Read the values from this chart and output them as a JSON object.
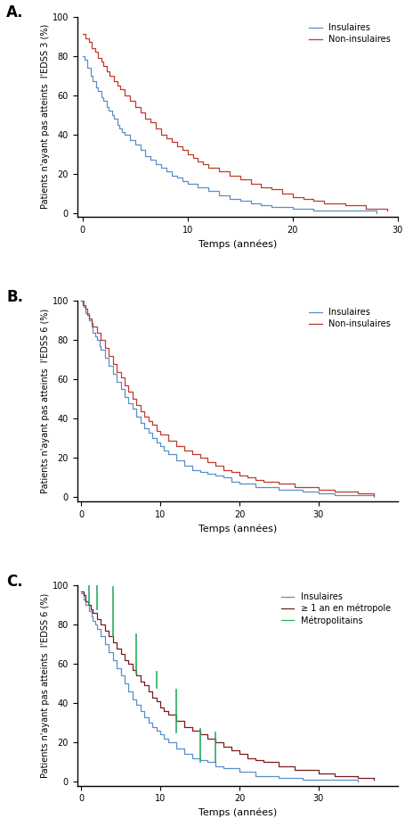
{
  "panel_A": {
    "title_label": "A.",
    "ylabel": "Patients n'ayant pas atteints  l'EDSS 3 (%)",
    "xlabel": "Temps (années)",
    "xlim": [
      -0.5,
      30
    ],
    "ylim": [
      -2,
      100
    ],
    "xticks": [
      0,
      10,
      20,
      30
    ],
    "yticks": [
      0,
      20,
      40,
      60,
      80,
      100
    ],
    "insulaires": {
      "color": "#5b8fc9",
      "label": "Insulaires",
      "time": [
        0,
        0.2,
        0.5,
        0.8,
        1.0,
        1.3,
        1.5,
        1.8,
        2.0,
        2.3,
        2.5,
        2.8,
        3.0,
        3.3,
        3.5,
        3.8,
        4.0,
        4.5,
        5.0,
        5.5,
        6.0,
        6.5,
        7.0,
        7.5,
        8.0,
        8.5,
        9.0,
        9.5,
        10.0,
        11.0,
        12.0,
        13.0,
        14.0,
        15.0,
        16.0,
        17.0,
        18.0,
        20.0,
        22.0,
        25.0,
        28.0
      ],
      "surv": [
        80,
        78,
        74,
        70,
        67,
        64,
        62,
        59,
        57,
        54,
        52,
        50,
        48,
        45,
        43,
        41,
        40,
        37,
        35,
        32,
        29,
        27,
        25,
        23,
        21,
        19,
        18,
        16,
        15,
        13,
        11,
        9,
        7,
        6,
        5,
        4,
        3,
        2,
        1,
        1,
        0
      ]
    },
    "non_insulaires": {
      "color": "#c0392b",
      "label": "Non-insulaires",
      "time": [
        0,
        0.3,
        0.6,
        0.9,
        1.2,
        1.5,
        1.8,
        2.0,
        2.3,
        2.6,
        3.0,
        3.3,
        3.6,
        4.0,
        4.5,
        5.0,
        5.5,
        6.0,
        6.5,
        7.0,
        7.5,
        8.0,
        8.5,
        9.0,
        9.5,
        10.0,
        10.5,
        11.0,
        11.5,
        12.0,
        13.0,
        14.0,
        15.0,
        16.0,
        17.0,
        18.0,
        19.0,
        20.0,
        21.0,
        22.0,
        23.0,
        25.0,
        27.0,
        29.0
      ],
      "surv": [
        91,
        89,
        87,
        84,
        82,
        79,
        77,
        75,
        72,
        70,
        67,
        65,
        63,
        60,
        57,
        54,
        51,
        48,
        46,
        43,
        40,
        38,
        36,
        34,
        32,
        30,
        28,
        26,
        25,
        23,
        21,
        19,
        17,
        15,
        13,
        12,
        10,
        8,
        7,
        6,
        5,
        4,
        2,
        1
      ]
    }
  },
  "panel_B": {
    "title_label": "B.",
    "ylabel": "Patients n'ayant pas atteints  l'EDSS 6 (%)",
    "xlabel": "Temps (années)",
    "xlim": [
      -0.5,
      40
    ],
    "ylim": [
      -2,
      100
    ],
    "xticks": [
      0,
      10,
      20,
      30
    ],
    "yticks": [
      0,
      20,
      40,
      60,
      80,
      100
    ],
    "insulaires": {
      "color": "#5b8fc9",
      "label": "Insulaires",
      "time": [
        0,
        0.3,
        0.6,
        1.0,
        1.3,
        1.5,
        1.8,
        2.0,
        2.3,
        2.5,
        3.0,
        3.5,
        4.0,
        4.5,
        5.0,
        5.5,
        6.0,
        6.5,
        7.0,
        7.5,
        8.0,
        8.5,
        9.0,
        9.5,
        10.0,
        10.5,
        11.0,
        12.0,
        13.0,
        14.0,
        15.0,
        16.0,
        17.0,
        18.0,
        19.0,
        20.0,
        22.0,
        25.0,
        28.0,
        30.0,
        32.0,
        35.0,
        37.0
      ],
      "surv": [
        100,
        97,
        94,
        90,
        87,
        84,
        82,
        80,
        77,
        75,
        71,
        67,
        63,
        59,
        55,
        51,
        48,
        45,
        41,
        38,
        35,
        33,
        30,
        28,
        26,
        24,
        22,
        19,
        16,
        14,
        13,
        12,
        11,
        10,
        8,
        7,
        5,
        4,
        3,
        2,
        1,
        1,
        0
      ]
    },
    "non_insulaires": {
      "color": "#c0392b",
      "label": "Non-insulaires",
      "time": [
        0,
        0.2,
        0.5,
        0.8,
        1.0,
        1.3,
        1.5,
        2.0,
        2.5,
        3.0,
        3.5,
        4.0,
        4.5,
        5.0,
        5.5,
        6.0,
        6.5,
        7.0,
        7.5,
        8.0,
        8.5,
        9.0,
        9.5,
        10.0,
        11.0,
        12.0,
        13.0,
        14.0,
        15.0,
        16.0,
        17.0,
        18.0,
        19.0,
        20.0,
        21.0,
        22.0,
        23.0,
        25.0,
        27.0,
        30.0,
        32.0,
        35.0,
        37.0
      ],
      "surv": [
        100,
        98,
        96,
        93,
        91,
        89,
        87,
        84,
        80,
        76,
        72,
        68,
        64,
        61,
        57,
        54,
        50,
        47,
        44,
        41,
        39,
        37,
        34,
        32,
        29,
        26,
        24,
        22,
        20,
        18,
        16,
        14,
        13,
        11,
        10,
        9,
        8,
        7,
        5,
        4,
        3,
        2,
        1
      ]
    }
  },
  "panel_C": {
    "title_label": "C.",
    "ylabel": "Patients n'ayant pas atteints  l'EDSS 6 (%)",
    "xlabel": "Temps (années)",
    "xlim": [
      -0.5,
      40
    ],
    "ylim": [
      -2,
      100
    ],
    "xticks": [
      0,
      10,
      20,
      30
    ],
    "yticks": [
      0,
      20,
      40,
      60,
      80,
      100
    ],
    "insulaires": {
      "color": "#5b8fc9",
      "label": "Insulaires",
      "time": [
        0,
        0.3,
        0.6,
        1.0,
        1.3,
        1.5,
        1.8,
        2.0,
        2.5,
        3.0,
        3.5,
        4.0,
        4.5,
        5.0,
        5.5,
        6.0,
        6.5,
        7.0,
        7.5,
        8.0,
        8.5,
        9.0,
        9.5,
        10.0,
        10.5,
        11.0,
        12.0,
        13.0,
        14.0,
        15.0,
        16.0,
        17.0,
        18.0,
        20.0,
        22.0,
        25.0,
        28.0,
        30.0,
        32.0,
        35.0
      ],
      "surv": [
        96,
        93,
        90,
        87,
        84,
        82,
        80,
        78,
        74,
        70,
        66,
        62,
        58,
        54,
        50,
        46,
        42,
        39,
        36,
        33,
        30,
        28,
        26,
        24,
        22,
        20,
        17,
        14,
        12,
        11,
        10,
        8,
        7,
        5,
        3,
        2,
        1,
        1,
        1,
        0
      ]
    },
    "metropole": {
      "color": "#7b1a1a",
      "label": "≥ 1 an en métropole",
      "time": [
        0,
        0.3,
        0.6,
        0.9,
        1.2,
        1.5,
        2.0,
        2.5,
        3.0,
        3.5,
        4.0,
        4.5,
        5.0,
        5.5,
        6.0,
        6.5,
        7.0,
        7.5,
        8.0,
        8.5,
        9.0,
        9.5,
        10.0,
        10.5,
        11.0,
        12.0,
        13.0,
        14.0,
        15.0,
        16.0,
        17.0,
        18.0,
        19.0,
        20.0,
        21.0,
        22.0,
        23.0,
        25.0,
        27.0,
        30.0,
        32.0,
        35.0,
        37.0
      ],
      "surv": [
        97,
        95,
        92,
        90,
        88,
        86,
        83,
        80,
        77,
        74,
        71,
        68,
        65,
        62,
        60,
        57,
        54,
        51,
        49,
        46,
        43,
        41,
        38,
        36,
        34,
        31,
        28,
        26,
        24,
        22,
        20,
        18,
        16,
        14,
        12,
        11,
        10,
        8,
        6,
        4,
        3,
        2,
        1
      ]
    },
    "metropolitains": {
      "color": "#27ae60",
      "label": "Métropolitains",
      "ci_segments": [
        {
          "x": 1.0,
          "y_low": 90,
          "y_high": 100
        },
        {
          "x": 2.0,
          "y_low": 88,
          "y_high": 100
        },
        {
          "x": 4.0,
          "y_low": 74,
          "y_high": 99
        },
        {
          "x": 7.0,
          "y_low": 55,
          "y_high": 75
        },
        {
          "x": 9.5,
          "y_low": 48,
          "y_high": 56
        },
        {
          "x": 12.0,
          "y_low": 25,
          "y_high": 47
        },
        {
          "x": 15.0,
          "y_low": 10,
          "y_high": 27
        },
        {
          "x": 17.0,
          "y_low": 10,
          "y_high": 25
        }
      ]
    }
  },
  "background_color": "#ffffff",
  "font_size": 8,
  "label_font_size": 9
}
